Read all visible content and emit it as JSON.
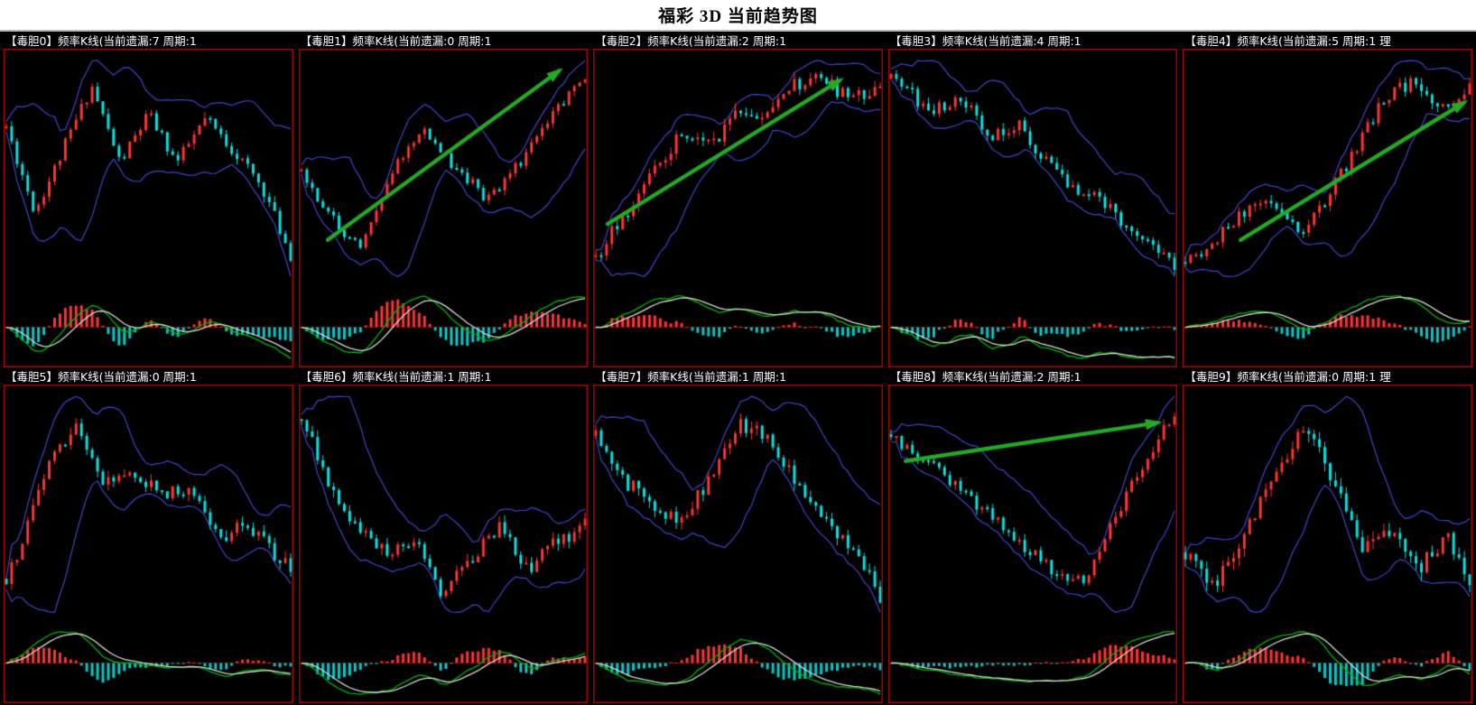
{
  "title": "福彩 3D 当前趋势图",
  "colors": {
    "background": "#000000",
    "titlebar_bg": "#ffffff",
    "title_text": "#000000",
    "panel_border": "#a80000",
    "candle_up": "#ff3232",
    "candle_down": "#00e0e0",
    "band": "#4343c8",
    "dif_line": "#00b400",
    "dea_line": "#d8d8d8",
    "hist_up": "#ff3232",
    "hist_down": "#00c8c8",
    "arrow": "#25a825",
    "header_text": "#ffffff",
    "zero_line": "#7a0000"
  },
  "chart_data": {
    "type": "candlestick-grid",
    "note": "10 frequency K-line panels with Bollinger-style bands, MACD-style indicator, trend keypoints normalized x:0-1 left-right, y:0-1 top-bottom",
    "panels": [
      {
        "header": "【毒胆0】频率K线(当前遗漏:7 周期:1",
        "label": "毒胆0",
        "missing": 7,
        "period": 1,
        "seed": 11,
        "candles": 54,
        "trend": [
          [
            0,
            0.35
          ],
          [
            0.1,
            0.7
          ],
          [
            0.18,
            0.5
          ],
          [
            0.3,
            0.18
          ],
          [
            0.4,
            0.5
          ],
          [
            0.5,
            0.3
          ],
          [
            0.6,
            0.5
          ],
          [
            0.7,
            0.32
          ],
          [
            0.8,
            0.45
          ],
          [
            0.9,
            0.6
          ],
          [
            1,
            0.88
          ]
        ],
        "arrow": null
      },
      {
        "header": "【毒胆1】频率K线(当前遗漏:0 周期:1",
        "label": "毒胆1",
        "missing": 0,
        "period": 1,
        "seed": 22,
        "candles": 54,
        "trend": [
          [
            0,
            0.5
          ],
          [
            0.1,
            0.7
          ],
          [
            0.2,
            0.85
          ],
          [
            0.3,
            0.55
          ],
          [
            0.42,
            0.3
          ],
          [
            0.55,
            0.5
          ],
          [
            0.65,
            0.62
          ],
          [
            0.75,
            0.5
          ],
          [
            0.85,
            0.3
          ],
          [
            1,
            0.07
          ]
        ],
        "arrow": [
          0.1,
          0.6,
          0.9,
          0.07
        ]
      },
      {
        "header": "【毒胆2】频率K线(当前遗漏:2 周期:1",
        "label": "毒胆2",
        "missing": 2,
        "period": 1,
        "seed": 33,
        "candles": 54,
        "trend": [
          [
            0,
            0.75
          ],
          [
            0.1,
            0.6
          ],
          [
            0.2,
            0.45
          ],
          [
            0.3,
            0.3
          ],
          [
            0.4,
            0.35
          ],
          [
            0.5,
            0.22
          ],
          [
            0.6,
            0.25
          ],
          [
            0.7,
            0.12
          ],
          [
            0.8,
            0.1
          ],
          [
            0.9,
            0.18
          ],
          [
            1,
            0.12
          ]
        ],
        "arrow": [
          0.05,
          0.55,
          0.85,
          0.1
        ]
      },
      {
        "header": "【毒胆3】频率K线(当前遗漏:4 周期:1",
        "label": "毒胆3",
        "missing": 4,
        "period": 1,
        "seed": 44,
        "candles": 54,
        "trend": [
          [
            0,
            0.12
          ],
          [
            0.15,
            0.25
          ],
          [
            0.25,
            0.2
          ],
          [
            0.35,
            0.35
          ],
          [
            0.45,
            0.3
          ],
          [
            0.55,
            0.45
          ],
          [
            0.65,
            0.55
          ],
          [
            0.75,
            0.6
          ],
          [
            0.85,
            0.72
          ],
          [
            1,
            0.85
          ]
        ],
        "arrow": null
      },
      {
        "header": "【毒胆4】频率K线(当前遗漏:5 周期:1 理",
        "label": "毒胆4",
        "missing": 5,
        "period": 1,
        "seed": 55,
        "candles": 54,
        "trend": [
          [
            0,
            0.8
          ],
          [
            0.1,
            0.72
          ],
          [
            0.2,
            0.6
          ],
          [
            0.3,
            0.55
          ],
          [
            0.4,
            0.68
          ],
          [
            0.5,
            0.55
          ],
          [
            0.6,
            0.35
          ],
          [
            0.7,
            0.15
          ],
          [
            0.8,
            0.1
          ],
          [
            0.9,
            0.2
          ],
          [
            1,
            0.12
          ]
        ],
        "arrow": [
          0.2,
          0.6,
          0.97,
          0.17
        ]
      },
      {
        "header": "【毒胆5】频率K线(当前遗漏:0 周期:1",
        "label": "毒胆5",
        "missing": 0,
        "period": 1,
        "seed": 66,
        "candles": 54,
        "trend": [
          [
            0,
            0.65
          ],
          [
            0.08,
            0.45
          ],
          [
            0.15,
            0.2
          ],
          [
            0.25,
            0.1
          ],
          [
            0.35,
            0.3
          ],
          [
            0.45,
            0.25
          ],
          [
            0.55,
            0.35
          ],
          [
            0.65,
            0.3
          ],
          [
            0.75,
            0.5
          ],
          [
            0.85,
            0.45
          ],
          [
            1,
            0.62
          ]
        ],
        "arrow": null
      },
      {
        "header": "【毒胆6】频率K线(当前遗漏:1 周期:1",
        "label": "毒胆6",
        "missing": 1,
        "period": 1,
        "seed": 77,
        "candles": 54,
        "trend": [
          [
            0,
            0.08
          ],
          [
            0.1,
            0.3
          ],
          [
            0.2,
            0.45
          ],
          [
            0.3,
            0.55
          ],
          [
            0.4,
            0.5
          ],
          [
            0.5,
            0.68
          ],
          [
            0.6,
            0.55
          ],
          [
            0.7,
            0.45
          ],
          [
            0.8,
            0.6
          ],
          [
            0.9,
            0.5
          ],
          [
            1,
            0.45
          ]
        ],
        "arrow": null
      },
      {
        "header": "【毒胆7】频率K线(当前遗漏:1 周期:1",
        "label": "毒胆7",
        "missing": 1,
        "period": 1,
        "seed": 88,
        "candles": 54,
        "trend": [
          [
            0,
            0.3
          ],
          [
            0.1,
            0.45
          ],
          [
            0.2,
            0.55
          ],
          [
            0.3,
            0.6
          ],
          [
            0.4,
            0.45
          ],
          [
            0.5,
            0.25
          ],
          [
            0.6,
            0.3
          ],
          [
            0.7,
            0.45
          ],
          [
            0.8,
            0.6
          ],
          [
            0.9,
            0.7
          ],
          [
            1,
            0.85
          ]
        ],
        "arrow": null
      },
      {
        "header": "【毒胆8】频率K线(当前遗漏:2 周期:1",
        "label": "毒胆8",
        "missing": 2,
        "period": 1,
        "seed": 99,
        "candles": 54,
        "trend": [
          [
            0,
            0.2
          ],
          [
            0.1,
            0.3
          ],
          [
            0.2,
            0.4
          ],
          [
            0.3,
            0.5
          ],
          [
            0.4,
            0.6
          ],
          [
            0.5,
            0.72
          ],
          [
            0.6,
            0.82
          ],
          [
            0.68,
            0.85
          ],
          [
            0.78,
            0.6
          ],
          [
            0.88,
            0.35
          ],
          [
            1,
            0.1
          ]
        ],
        "arrow": [
          0.06,
          0.24,
          0.93,
          0.12
        ]
      },
      {
        "header": "【毒胆9】频率K线(当前遗漏:0 周期:1 理",
        "label": "毒胆9",
        "missing": 0,
        "period": 1,
        "seed": 110,
        "candles": 54,
        "trend": [
          [
            0,
            0.5
          ],
          [
            0.1,
            0.6
          ],
          [
            0.2,
            0.45
          ],
          [
            0.3,
            0.3
          ],
          [
            0.42,
            0.12
          ],
          [
            0.52,
            0.3
          ],
          [
            0.62,
            0.5
          ],
          [
            0.72,
            0.45
          ],
          [
            0.82,
            0.55
          ],
          [
            0.92,
            0.45
          ],
          [
            1,
            0.6
          ]
        ],
        "arrow": null
      }
    ]
  }
}
